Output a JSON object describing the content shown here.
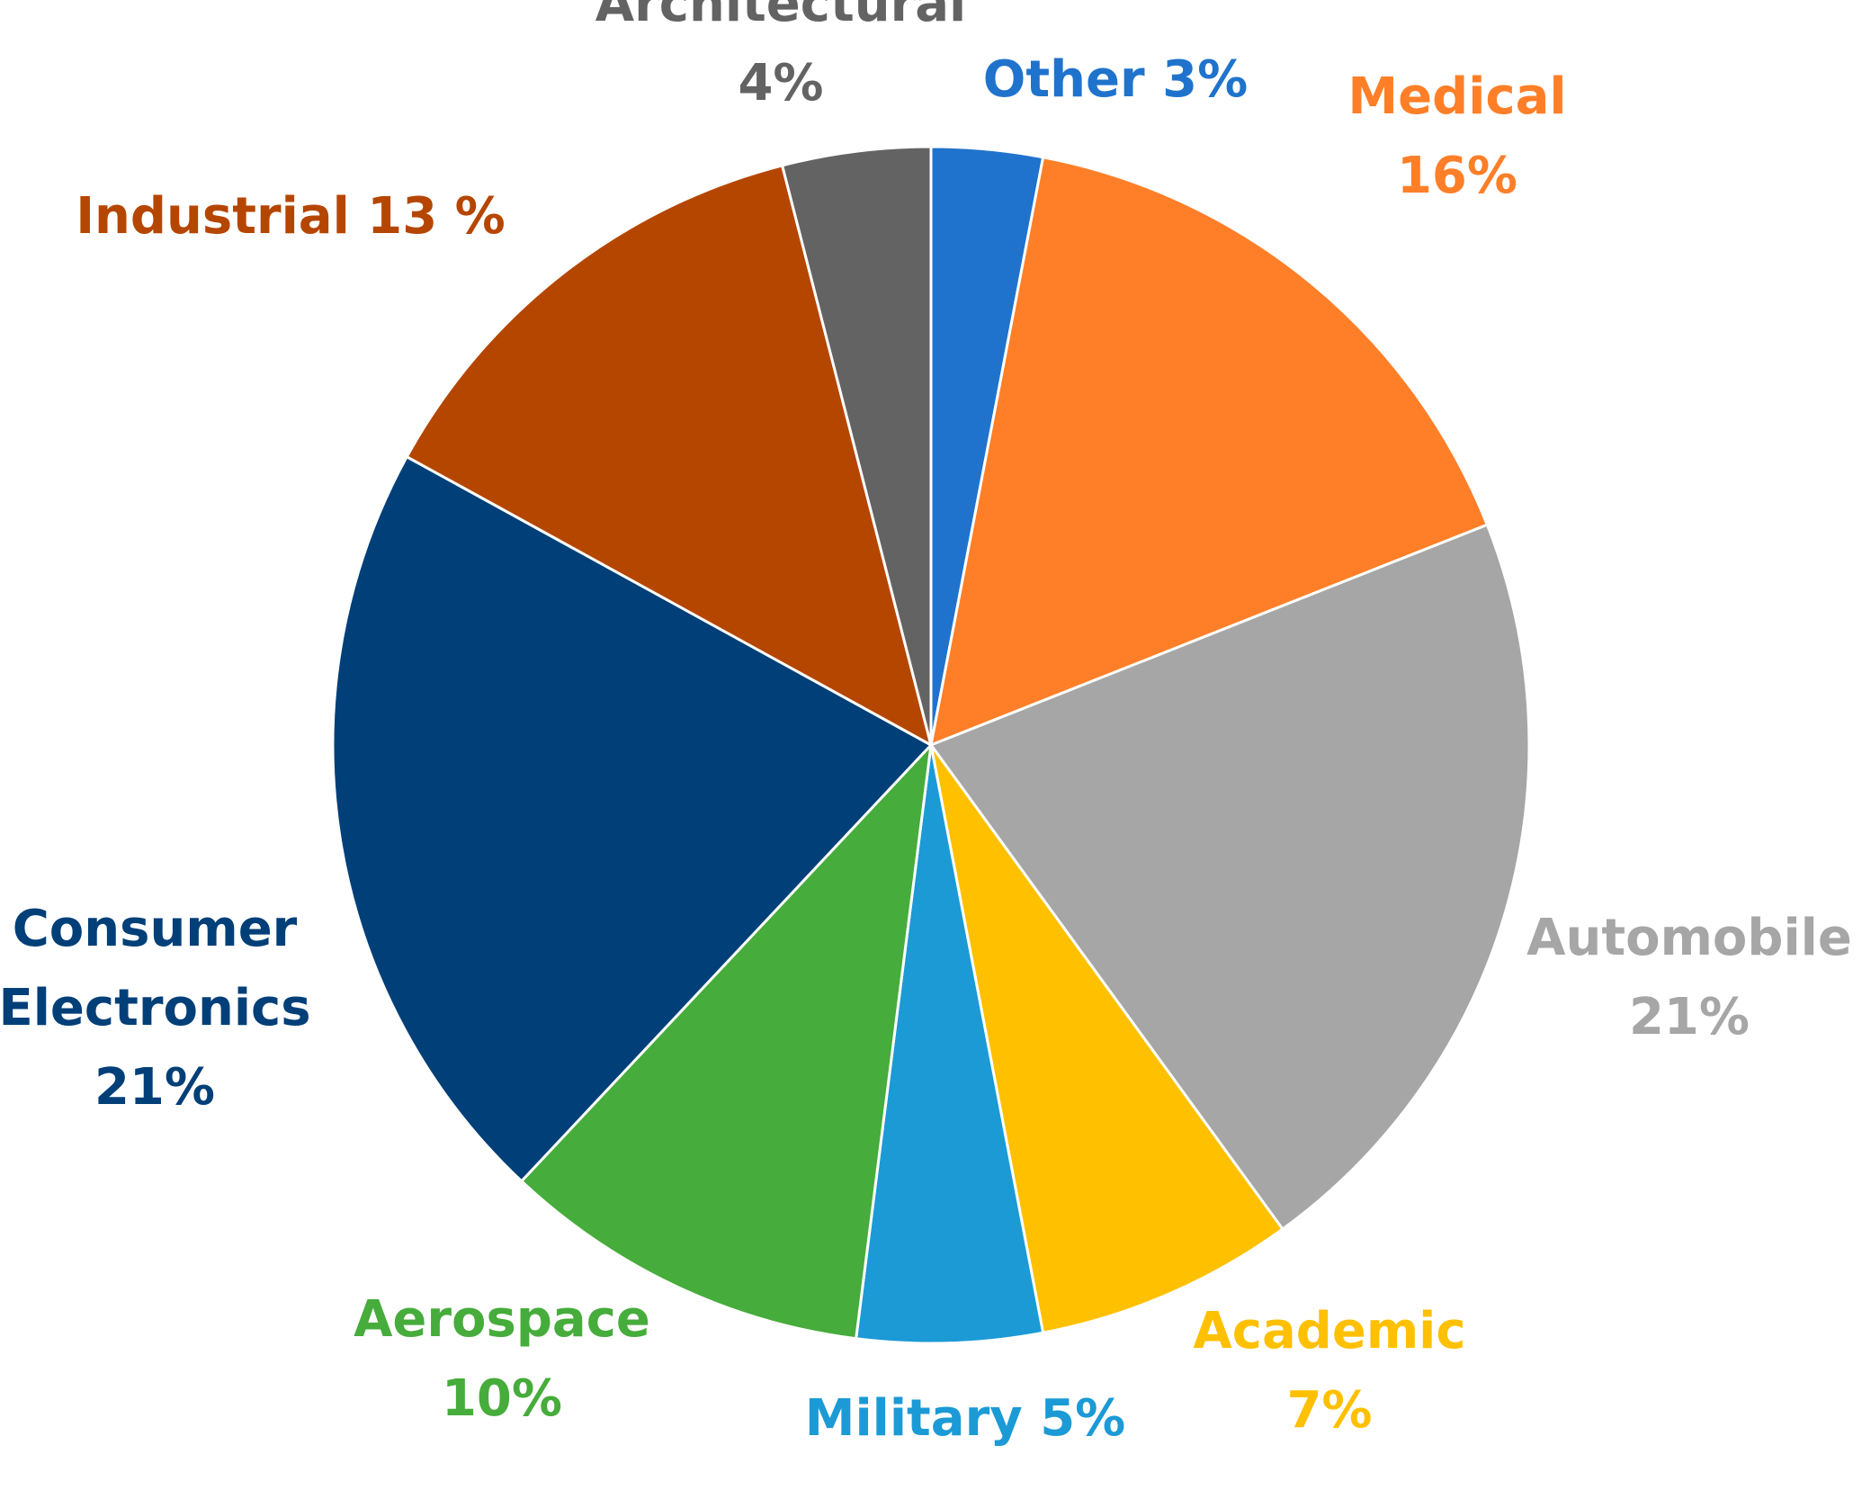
{
  "chart_data": {
    "type": "pie",
    "title": "",
    "start_angle_deg": 0,
    "direction": "clockwise",
    "series": [
      {
        "name": "Other",
        "value": 3,
        "color": "#1f73cc",
        "label_lines": [
          "Other 3%"
        ]
      },
      {
        "name": "Medical",
        "value": 16,
        "color": "#fe7f28",
        "label_lines": [
          "Medical",
          "16%"
        ]
      },
      {
        "name": "Automobile",
        "value": 21,
        "color": "#a6a6a6",
        "label_lines": [
          "Automobile",
          "21%"
        ]
      },
      {
        "name": "Academic",
        "value": 7,
        "color": "#ffc000",
        "label_lines": [
          "Academic",
          "7%"
        ]
      },
      {
        "name": "Military",
        "value": 5,
        "color": "#1b9ad6",
        "label_lines": [
          "Military 5%"
        ]
      },
      {
        "name": "Aerospace",
        "value": 10,
        "color": "#46ac3b",
        "label_lines": [
          "Aerospace",
          "10%"
        ]
      },
      {
        "name": "Consumer Electronics",
        "value": 21,
        "color": "#003f78",
        "label_lines": [
          "Consumer",
          "Electronics",
          "21%"
        ]
      },
      {
        "name": "Industrial",
        "value": 13,
        "color": "#b54600",
        "label_lines": [
          "Industrial 13 %"
        ]
      },
      {
        "name": "Architectural",
        "value": 4,
        "color": "#636363",
        "label_lines": [
          "Architectural",
          "4%"
        ]
      }
    ]
  }
}
